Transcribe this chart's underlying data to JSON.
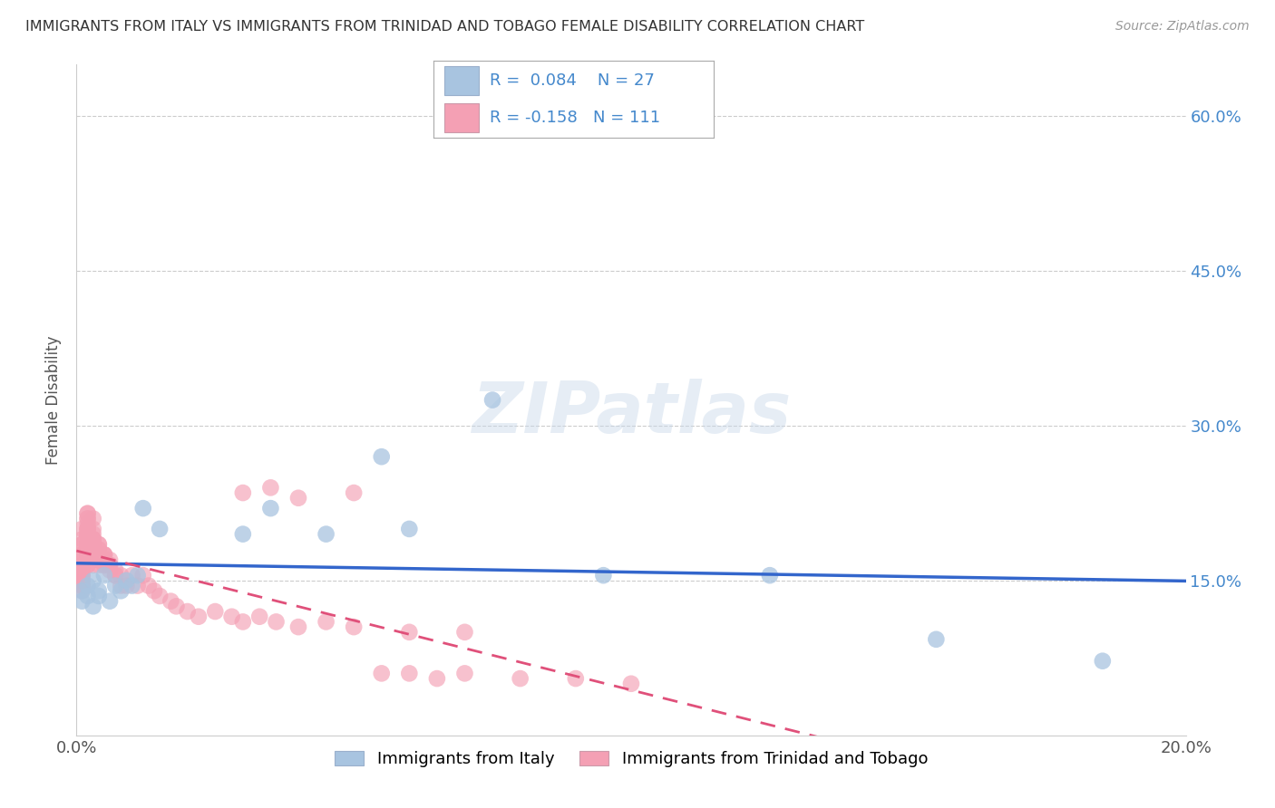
{
  "title": "IMMIGRANTS FROM ITALY VS IMMIGRANTS FROM TRINIDAD AND TOBAGO FEMALE DISABILITY CORRELATION CHART",
  "source": "Source: ZipAtlas.com",
  "ylabel": "Female Disability",
  "xlabel_italy": "Immigrants from Italy",
  "xlabel_tt": "Immigrants from Trinidad and Tobago",
  "r_italy": 0.084,
  "n_italy": 27,
  "r_tt": -0.158,
  "n_tt": 111,
  "color_italy": "#a8c4e0",
  "color_tt": "#f4a0b4",
  "line_color_italy": "#3366cc",
  "line_color_tt": "#e0507a",
  "xlim": [
    0.0,
    0.2
  ],
  "ylim": [
    0.0,
    0.65
  ],
  "yticks": [
    0.15,
    0.3,
    0.45,
    0.6
  ],
  "ytick_labels": [
    "15.0%",
    "30.0%",
    "45.0%",
    "60.0%"
  ],
  "xticks": [
    0.0,
    0.04,
    0.08,
    0.12,
    0.16,
    0.2
  ],
  "xtick_labels": [
    "0.0%",
    "",
    "",
    "",
    "",
    "20.0%"
  ],
  "watermark": "ZIPatlas",
  "italy_x": [
    0.001,
    0.001,
    0.002,
    0.002,
    0.003,
    0.003,
    0.004,
    0.004,
    0.005,
    0.006,
    0.007,
    0.008,
    0.009,
    0.01,
    0.011,
    0.012,
    0.015,
    0.03,
    0.035,
    0.045,
    0.055,
    0.06,
    0.075,
    0.095,
    0.125,
    0.155,
    0.185
  ],
  "italy_y": [
    0.13,
    0.14,
    0.135,
    0.145,
    0.125,
    0.15,
    0.14,
    0.135,
    0.155,
    0.13,
    0.145,
    0.14,
    0.15,
    0.145,
    0.155,
    0.22,
    0.2,
    0.195,
    0.22,
    0.195,
    0.27,
    0.2,
    0.325,
    0.155,
    0.155,
    0.093,
    0.072
  ],
  "tt_x": [
    0.001,
    0.001,
    0.001,
    0.001,
    0.001,
    0.001,
    0.001,
    0.001,
    0.001,
    0.001,
    0.001,
    0.001,
    0.001,
    0.001,
    0.001,
    0.001,
    0.001,
    0.001,
    0.001,
    0.001,
    0.002,
    0.002,
    0.002,
    0.002,
    0.002,
    0.002,
    0.002,
    0.002,
    0.002,
    0.002,
    0.002,
    0.002,
    0.002,
    0.002,
    0.002,
    0.002,
    0.002,
    0.002,
    0.002,
    0.002,
    0.003,
    0.003,
    0.003,
    0.003,
    0.003,
    0.003,
    0.003,
    0.003,
    0.003,
    0.003,
    0.003,
    0.003,
    0.003,
    0.004,
    0.004,
    0.004,
    0.004,
    0.004,
    0.004,
    0.004,
    0.004,
    0.004,
    0.004,
    0.005,
    0.005,
    0.005,
    0.005,
    0.005,
    0.005,
    0.005,
    0.006,
    0.006,
    0.006,
    0.006,
    0.007,
    0.007,
    0.007,
    0.008,
    0.008,
    0.009,
    0.01,
    0.011,
    0.012,
    0.013,
    0.014,
    0.015,
    0.017,
    0.018,
    0.02,
    0.022,
    0.025,
    0.028,
    0.03,
    0.033,
    0.036,
    0.04,
    0.045,
    0.05,
    0.06,
    0.07,
    0.03,
    0.035,
    0.04,
    0.05,
    0.055,
    0.06,
    0.065,
    0.07,
    0.08,
    0.09,
    0.1
  ],
  "tt_y": [
    0.155,
    0.145,
    0.15,
    0.16,
    0.14,
    0.155,
    0.145,
    0.16,
    0.15,
    0.145,
    0.175,
    0.185,
    0.19,
    0.165,
    0.2,
    0.185,
    0.17,
    0.16,
    0.175,
    0.155,
    0.195,
    0.21,
    0.2,
    0.185,
    0.175,
    0.195,
    0.185,
    0.175,
    0.165,
    0.18,
    0.2,
    0.215,
    0.205,
    0.195,
    0.185,
    0.175,
    0.21,
    0.165,
    0.215,
    0.2,
    0.19,
    0.185,
    0.175,
    0.21,
    0.165,
    0.2,
    0.19,
    0.185,
    0.175,
    0.195,
    0.185,
    0.175,
    0.19,
    0.185,
    0.175,
    0.18,
    0.175,
    0.165,
    0.175,
    0.185,
    0.17,
    0.18,
    0.175,
    0.175,
    0.17,
    0.175,
    0.165,
    0.175,
    0.17,
    0.165,
    0.17,
    0.165,
    0.16,
    0.165,
    0.16,
    0.155,
    0.155,
    0.145,
    0.155,
    0.145,
    0.155,
    0.145,
    0.155,
    0.145,
    0.14,
    0.135,
    0.13,
    0.125,
    0.12,
    0.115,
    0.12,
    0.115,
    0.11,
    0.115,
    0.11,
    0.105,
    0.11,
    0.105,
    0.1,
    0.1,
    0.235,
    0.24,
    0.23,
    0.235,
    0.06,
    0.06,
    0.055,
    0.06,
    0.055,
    0.055,
    0.05
  ]
}
